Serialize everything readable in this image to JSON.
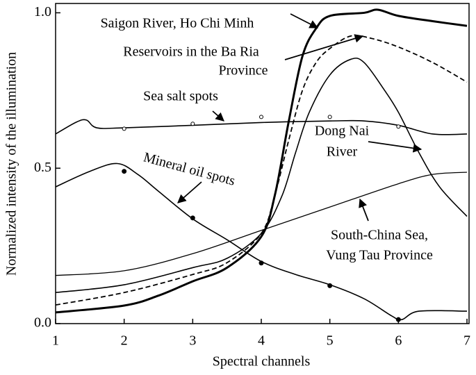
{
  "chart_data": {
    "type": "line",
    "xlabel": "Spectral channels",
    "ylabel": "Normalized intensity of the illumination",
    "xlim": [
      1,
      7
    ],
    "ylim": [
      0,
      1.03
    ],
    "xticks": [
      1,
      2,
      3,
      4,
      5,
      6,
      7
    ],
    "yticks": [
      {
        "value": 0,
        "label": "0.0"
      },
      {
        "value": 0.5,
        "label": "0.5"
      },
      {
        "value": 1,
        "label": "1.0"
      }
    ],
    "grid": false,
    "series": [
      {
        "name": "Saigon River, Ho Chi Minh",
        "color": "#000000",
        "width": 3,
        "dash": false,
        "x": [
          1,
          2,
          2.5,
          3,
          3.5,
          4,
          4.2,
          4.4,
          4.6,
          4.8,
          5,
          5.5,
          5.7,
          6,
          6.5,
          7
        ],
        "values": [
          0.036,
          0.058,
          0.09,
          0.136,
          0.18,
          0.28,
          0.415,
          0.65,
          0.86,
          0.95,
          0.99,
          1.0,
          1.01,
          0.99,
          0.973,
          0.958
        ]
      },
      {
        "name": "Reservoirs in the Ba Ria Province",
        "color": "#000000",
        "width": 1.8,
        "dash": true,
        "x": [
          1,
          2,
          3,
          3.5,
          4,
          4.2,
          4.4,
          4.6,
          4.8,
          5,
          5.3,
          5.6,
          6,
          6.5,
          7
        ],
        "values": [
          0.06,
          0.1,
          0.158,
          0.196,
          0.29,
          0.415,
          0.59,
          0.75,
          0.84,
          0.885,
          0.925,
          0.918,
          0.89,
          0.84,
          0.777
        ]
      },
      {
        "name": "Dong Nai River",
        "color": "#000000",
        "width": 1.6,
        "dash": false,
        "x": [
          1,
          2,
          3,
          3.5,
          4,
          4.3,
          4.5,
          4.7,
          5,
          5.3,
          5.5,
          5.8,
          6,
          6.3,
          6.6,
          7
        ],
        "values": [
          0.1,
          0.125,
          0.18,
          0.21,
          0.29,
          0.41,
          0.55,
          0.68,
          0.8,
          0.85,
          0.84,
          0.75,
          0.68,
          0.55,
          0.44,
          0.345
        ]
      },
      {
        "name": "South-China Sea, Vung Tau Province",
        "color": "#000000",
        "width": 1.3,
        "dash": false,
        "x": [
          1,
          2,
          3,
          4,
          5,
          6,
          6.5,
          7
        ],
        "values": [
          0.155,
          0.17,
          0.225,
          0.3,
          0.375,
          0.45,
          0.48,
          0.487
        ]
      },
      {
        "name": "Sea salt spots",
        "color": "#000000",
        "width": 1.6,
        "dash": false,
        "x": [
          1,
          1.3,
          1.45,
          1.6,
          2,
          3,
          4,
          5,
          5.5,
          6,
          6.5,
          7
        ],
        "values": [
          0.61,
          0.648,
          0.655,
          0.63,
          0.63,
          0.638,
          0.647,
          0.652,
          0.652,
          0.638,
          0.61,
          0.61
        ],
        "points": {
          "marker": "circle",
          "x": [
            2,
            3,
            4,
            5,
            6
          ],
          "values": [
            0.627,
            0.643,
            0.665,
            0.665,
            0.634
          ]
        }
      },
      {
        "name": "Mineral oil spots",
        "color": "#000000",
        "width": 1.6,
        "dash": false,
        "x": [
          1,
          1.5,
          1.9,
          2.2,
          2.5,
          3,
          3.5,
          4,
          4.5,
          5,
          5.5,
          5.9,
          6.05,
          6.3,
          7
        ],
        "values": [
          0.44,
          0.49,
          0.515,
          0.48,
          0.426,
          0.337,
          0.27,
          0.2,
          0.158,
          0.125,
          0.08,
          0.025,
          0.013,
          0.04,
          0.04
        ],
        "points": {
          "marker": "dot",
          "x": [
            2,
            3,
            4,
            5,
            6
          ],
          "values": [
            0.49,
            0.34,
            0.195,
            0.122,
            0.013
          ]
        }
      }
    ],
    "annotations": [
      {
        "lines": [
          "Saigon River, Ho Chi Minh"
        ]
      },
      {
        "lines": [
          "Reservoirs in the Ba Ria",
          "Province"
        ]
      },
      {
        "lines": [
          "Sea salt spots"
        ]
      },
      {
        "lines": [
          "Dong Nai",
          "River"
        ]
      },
      {
        "lines": [
          "Mineral oil spots"
        ]
      },
      {
        "lines": [
          "South-China Sea,",
          "Vung Tau Province"
        ]
      }
    ]
  }
}
